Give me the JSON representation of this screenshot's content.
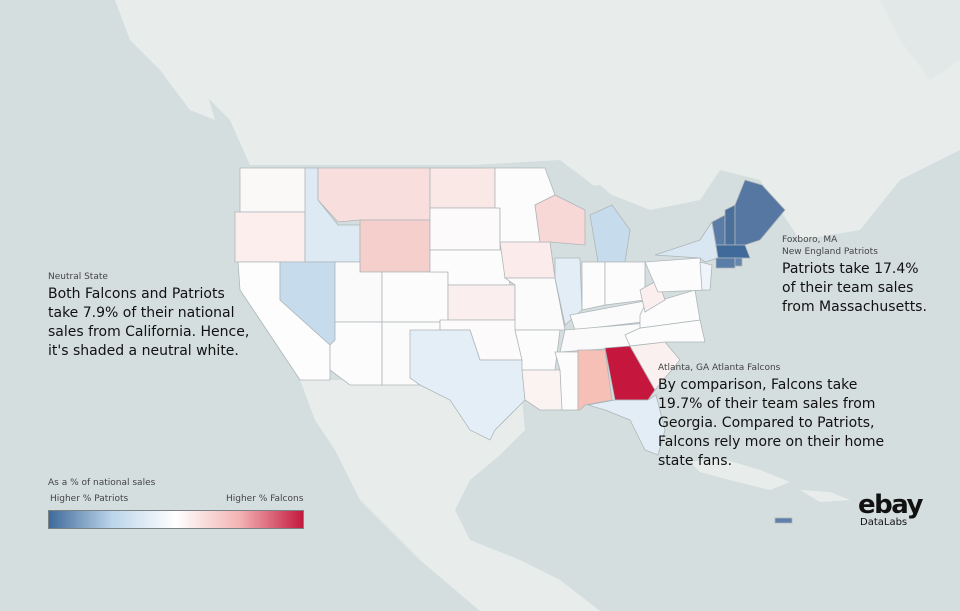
{
  "annotations": {
    "neutral": {
      "label": "Neutral State",
      "text": "Both Falcons and Patriots\ntake 7.9% of their national\nsales from California. Hence,\nit's shaded a neutral white."
    },
    "patriots": {
      "label_line1": "Foxboro, MA",
      "label_line2": "New England Patriots",
      "text": "Patriots take 17.4%\nof their team sales\nfrom Massachusetts."
    },
    "falcons": {
      "label": "Atlanta, GA Atlanta Falcons",
      "text": "By comparison, Falcons take\n19.7% of their team sales from\nGeorgia. Compared to Patriots,\nFalcons rely more on their home\nstate fans."
    }
  },
  "legend": {
    "title": "As a % of national sales",
    "left_label": "Higher % Patriots",
    "right_label": "Higher % Falcons",
    "gradient": [
      "#3f6a9a",
      "#bcd5ea",
      "#ffffff",
      "#f3b3b3",
      "#c3193f"
    ]
  },
  "logo": {
    "wordmark": "ebay",
    "sub": "DataLabs"
  },
  "colors": {
    "water": "#d5dedf",
    "land": "#e8edec",
    "neutral": "#fafafa",
    "strong_patriots": "#4b6f9b",
    "strong_falcons": "#c5173e"
  }
}
